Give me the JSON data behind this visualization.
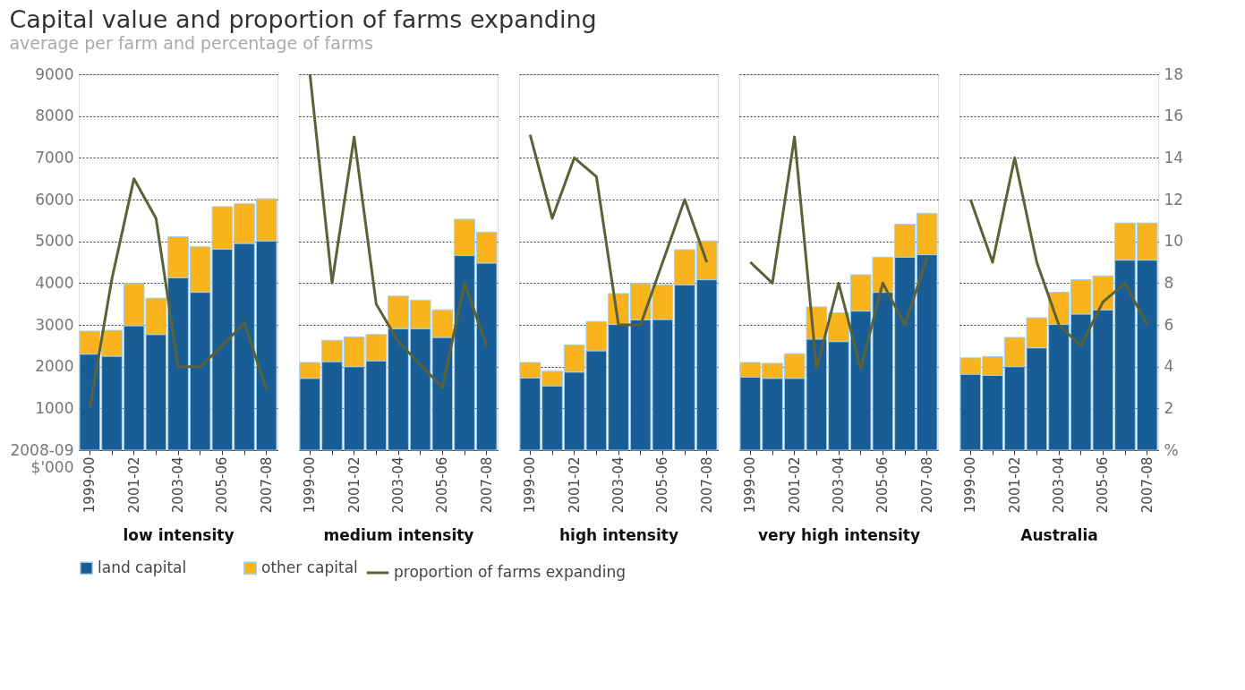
{
  "chart_data": [
    {
      "type": "bar",
      "title": "Capital value and proportion of farms expanding",
      "subtitle": "average per farm and percentage of farms",
      "xlabel": "low intensity",
      "stacked": true,
      "categories": [
        "1999-00",
        null,
        "2001-02",
        null,
        "2003-04",
        null,
        "2005-06",
        null,
        "2007-08"
      ],
      "ylim": [
        0,
        9000
      ],
      "yticks": [
        {
          "value": 0,
          "label": "2008-09\n$'000"
        },
        1000,
        2000,
        3000,
        4000,
        5000,
        6000,
        7000,
        8000,
        9000
      ],
      "y2lim": [
        0,
        18
      ],
      "grid": "y",
      "tick_labels": [
        "x",
        "y"
      ],
      "legend": "bottom",
      "series": [
        {
          "name": "land capital",
          "color": "#195d97",
          "values": [
            2300,
            2250,
            2980,
            2770,
            4130,
            3780,
            4810,
            4950,
            5010
          ]
        },
        {
          "name": "other capital",
          "color": "#f9b31c",
          "values": [
            550,
            620,
            1010,
            870,
            980,
            1090,
            1020,
            950,
            1010
          ]
        },
        {
          "name": "proportion of farms expanding",
          "type": "line",
          "axis": "y2",
          "color": "#5b6237",
          "values": [
            2,
            8.2,
            13,
            11.1,
            4,
            4,
            5,
            6.1,
            2.9
          ]
        }
      ]
    },
    {
      "type": "bar",
      "xlabel": "medium intensity",
      "stacked": true,
      "categories": [
        "1999-00",
        null,
        "2001-02",
        null,
        "2003-04",
        null,
        "2005-06",
        null,
        "2007-08"
      ],
      "ylim": [
        0,
        9000
      ],
      "yticks": [
        0,
        1000,
        2000,
        3000,
        4000,
        5000,
        6000,
        7000,
        8000,
        9000
      ],
      "y2lim": [
        0,
        18
      ],
      "grid": "y",
      "tick_labels": "x",
      "legend": "bottom",
      "series": [
        {
          "name": "land capital",
          "color": "#195d97",
          "values": [
            1720,
            2120,
            2000,
            2140,
            2910,
            2910,
            2700,
            4660,
            4480
          ]
        },
        {
          "name": "other capital",
          "color": "#f9b31c",
          "values": [
            380,
            510,
            710,
            630,
            780,
            680,
            660,
            870,
            740
          ]
        },
        {
          "name": "proportion of farms expanding",
          "type": "line",
          "axis": "y2",
          "color": "#5b6237",
          "values": [
            18,
            8,
            15,
            7,
            5.2,
            4.1,
            3,
            8,
            5
          ]
        }
      ]
    },
    {
      "type": "bar",
      "xlabel": "high intensity",
      "stacked": true,
      "categories": [
        "1999-00",
        null,
        "2001-02",
        null,
        "2003-04",
        null,
        "2005-06",
        null,
        "2007-08"
      ],
      "ylim": [
        0,
        9000
      ],
      "yticks": [
        0,
        1000,
        2000,
        3000,
        4000,
        5000,
        6000,
        7000,
        8000,
        9000
      ],
      "y2lim": [
        0,
        18
      ],
      "grid": "y",
      "tick_labels": "x",
      "legend": "bottom",
      "series": [
        {
          "name": "land capital",
          "color": "#195d97",
          "values": [
            1730,
            1540,
            1870,
            2380,
            3010,
            3120,
            3130,
            3960,
            4080
          ]
        },
        {
          "name": "other capital",
          "color": "#f9b31c",
          "values": [
            370,
            350,
            650,
            700,
            740,
            870,
            830,
            840,
            930
          ]
        },
        {
          "name": "proportion of farms expanding",
          "type": "line",
          "axis": "y2",
          "color": "#5b6237",
          "values": [
            15.1,
            11.1,
            14,
            13.1,
            6,
            6,
            9,
            12,
            9
          ]
        }
      ]
    },
    {
      "type": "bar",
      "xlabel": "very high intensity",
      "stacked": true,
      "categories": [
        "1999-00",
        null,
        "2001-02",
        null,
        "2003-04",
        null,
        "2005-06",
        null,
        "2007-08"
      ],
      "ylim": [
        0,
        9000
      ],
      "yticks": [
        0,
        1000,
        2000,
        3000,
        4000,
        5000,
        6000,
        7000,
        8000,
        9000
      ],
      "y2lim": [
        0,
        18
      ],
      "grid": "y",
      "tick_labels": "x",
      "legend": "bottom",
      "series": [
        {
          "name": "land capital",
          "color": "#195d97",
          "values": [
            1750,
            1720,
            1720,
            2660,
            2600,
            3330,
            3780,
            4620,
            4680
          ]
        },
        {
          "name": "other capital",
          "color": "#f9b31c",
          "values": [
            350,
            360,
            590,
            770,
            690,
            870,
            840,
            790,
            990
          ]
        },
        {
          "name": "proportion of farms expanding",
          "type": "line",
          "axis": "y2",
          "color": "#5b6237",
          "values": [
            9,
            8,
            15,
            3.9,
            8,
            3.9,
            8,
            6,
            9.2
          ]
        }
      ]
    },
    {
      "type": "bar",
      "xlabel": "Australia",
      "stacked": true,
      "categories": [
        "1999-00",
        null,
        "2001-02",
        null,
        "2003-04",
        null,
        "2005-06",
        null,
        "2007-08"
      ],
      "ylim": [
        0,
        9000
      ],
      "y2lim": [
        0,
        18
      ],
      "y2ticks": [
        {
          "value": 0,
          "label": "%"
        },
        2,
        4,
        6,
        8,
        10,
        12,
        14,
        16,
        18
      ],
      "grid": "y",
      "tick_labels": [
        "x",
        "y2"
      ],
      "legend": "bottom",
      "series": [
        {
          "name": "land capital",
          "color": "#195d97",
          "values": [
            1820,
            1790,
            2000,
            2450,
            3010,
            3260,
            3360,
            4550,
            4550
          ]
        },
        {
          "name": "other capital",
          "color": "#f9b31c",
          "values": [
            390,
            450,
            700,
            720,
            770,
            820,
            810,
            890,
            890
          ]
        },
        {
          "name": "proportion of farms expanding",
          "type": "line",
          "axis": "y2",
          "color": "#5b6237",
          "values": [
            12,
            9,
            14,
            9,
            6,
            5,
            7.1,
            8,
            6
          ]
        }
      ]
    }
  ]
}
